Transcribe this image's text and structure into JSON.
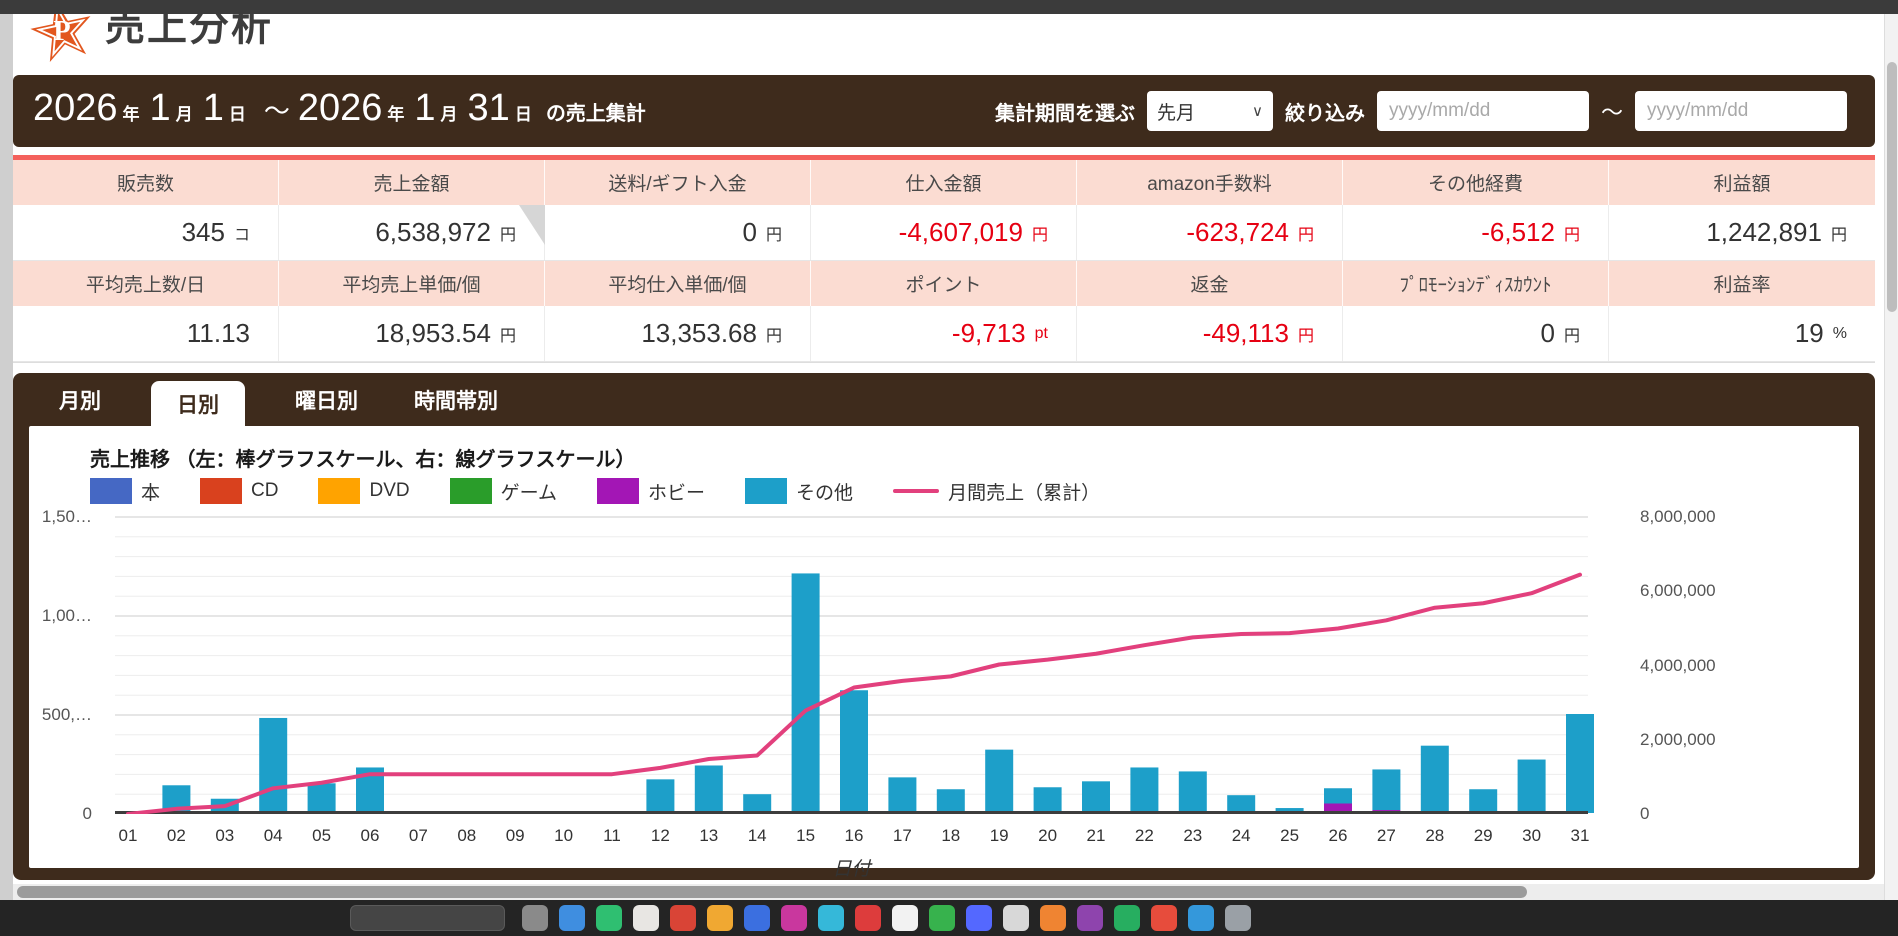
{
  "header": {
    "title": "売上分析",
    "logo_letter": "P"
  },
  "brand": {
    "orange": "#e2571f",
    "brown": "#3e2b1c",
    "pink_header_bg": "#fbdcd2",
    "red_divider": "#f4615c",
    "negative_red": "#e60012"
  },
  "period_bar": {
    "date_parts": [
      {
        "text": "2026",
        "size": "big"
      },
      {
        "text": "年",
        "size": "small"
      },
      {
        "text": "1",
        "size": "big"
      },
      {
        "text": "月",
        "size": "small"
      },
      {
        "text": "1",
        "size": "big"
      },
      {
        "text": "日",
        "size": "small"
      },
      {
        "text": "～",
        "size": "tilde"
      },
      {
        "text": "2026",
        "size": "big"
      },
      {
        "text": "年",
        "size": "small"
      },
      {
        "text": "1",
        "size": "big"
      },
      {
        "text": "月",
        "size": "small"
      },
      {
        "text": "31",
        "size": "big"
      },
      {
        "text": "日",
        "size": "small"
      },
      {
        "text": "の売上集計",
        "size": "suffix"
      }
    ],
    "select_label": "集計期間を選ぶ",
    "select_value": "先月",
    "filter_label": "絞り込み",
    "date_from_placeholder": "yyyy/mm/dd",
    "date_to_placeholder": "yyyy/mm/dd",
    "separator": "～"
  },
  "summary_table": {
    "rows": [
      {
        "type": "header",
        "cells": [
          "販売数",
          "売上金額",
          "送料/ギフト入金",
          "仕入金額",
          "amazon手数料",
          "その他経費",
          "利益額"
        ]
      },
      {
        "type": "value",
        "cells": [
          {
            "num": "345",
            "unit": "コ",
            "neg": false
          },
          {
            "num": "6,538,972",
            "unit": "円",
            "neg": false
          },
          {
            "num": "0",
            "unit": "円",
            "neg": false
          },
          {
            "num": "-4,607,019",
            "unit": "円",
            "neg": true
          },
          {
            "num": "-623,724",
            "unit": "円",
            "neg": true
          },
          {
            "num": "-6,512",
            "unit": "円",
            "neg": true
          },
          {
            "num": "1,242,891",
            "unit": "円",
            "neg": false
          }
        ]
      },
      {
        "type": "header",
        "cells": [
          "平均売上数/日",
          "平均売上単価/個",
          "平均仕入単価/個",
          "ポイント",
          "返金",
          "ﾌﾟﾛﾓｰｼｮﾝﾃﾞｨｽｶｳﾝﾄ",
          "利益率"
        ]
      },
      {
        "type": "value",
        "cells": [
          {
            "num": "11.13",
            "unit": "",
            "neg": false
          },
          {
            "num": "18,953.54",
            "unit": "円",
            "neg": false
          },
          {
            "num": "13,353.68",
            "unit": "円",
            "neg": false
          },
          {
            "num": "-9,713",
            "unit": "pt",
            "neg": true
          },
          {
            "num": "-49,113",
            "unit": "円",
            "neg": true
          },
          {
            "num": "0",
            "unit": "円",
            "neg": false
          },
          {
            "num": "19",
            "unit": "%",
            "neg": false
          }
        ]
      }
    ]
  },
  "tabs": [
    {
      "key": "monthly",
      "label": "月別",
      "active": false
    },
    {
      "key": "daily",
      "label": "日別",
      "active": true
    },
    {
      "key": "weekday",
      "label": "曜日別",
      "active": false
    },
    {
      "key": "timeband",
      "label": "時間帯別",
      "active": false
    }
  ],
  "chart_data": {
    "type": "bar",
    "subtype": "stacked bars (left axis) + cumulative line (right axis)",
    "title": "売上推移 （左：棒グラフスケール、右：線グラフスケール）",
    "xlabel": "日付",
    "categories": [
      "01",
      "02",
      "03",
      "04",
      "05",
      "06",
      "07",
      "08",
      "09",
      "10",
      "11",
      "12",
      "13",
      "14",
      "15",
      "16",
      "17",
      "18",
      "19",
      "20",
      "21",
      "22",
      "23",
      "24",
      "25",
      "26",
      "27",
      "28",
      "29",
      "30",
      "31"
    ],
    "series": [
      {
        "name": "本",
        "color": "#4568c4",
        "values": [
          0,
          0,
          0,
          0,
          0,
          0,
          0,
          0,
          0,
          0,
          0,
          0,
          0,
          0,
          0,
          0,
          0,
          0,
          0,
          0,
          0,
          0,
          0,
          0,
          0,
          0,
          0,
          0,
          0,
          0,
          0
        ]
      },
      {
        "name": "CD",
        "color": "#d9411e",
        "values": [
          0,
          0,
          0,
          0,
          0,
          0,
          0,
          0,
          0,
          0,
          0,
          0,
          0,
          0,
          0,
          0,
          0,
          0,
          0,
          0,
          0,
          0,
          0,
          0,
          0,
          0,
          0,
          0,
          0,
          0,
          0
        ]
      },
      {
        "name": "DVD",
        "color": "#ffa300",
        "values": [
          0,
          0,
          0,
          0,
          0,
          0,
          0,
          0,
          0,
          0,
          0,
          0,
          0,
          0,
          0,
          0,
          0,
          0,
          0,
          0,
          0,
          0,
          0,
          0,
          0,
          0,
          0,
          0,
          0,
          0,
          0
        ]
      },
      {
        "name": "ゲーム",
        "color": "#2a9d2a",
        "values": [
          0,
          0,
          0,
          0,
          0,
          0,
          0,
          0,
          0,
          0,
          0,
          0,
          0,
          0,
          0,
          0,
          0,
          0,
          0,
          0,
          0,
          0,
          0,
          0,
          0,
          0,
          0,
          0,
          0,
          0,
          0
        ]
      },
      {
        "name": "ホビー",
        "color": "#a316b5",
        "values": [
          0,
          0,
          0,
          0,
          0,
          0,
          0,
          0,
          0,
          0,
          0,
          0,
          0,
          0,
          0,
          0,
          0,
          0,
          0,
          0,
          0,
          0,
          0,
          0,
          8000,
          48000,
          15000,
          0,
          0,
          0,
          0
        ]
      },
      {
        "name": "その他",
        "color": "#1d9fc9",
        "values": [
          0,
          140000,
          72000,
          480000,
          150000,
          230000,
          0,
          0,
          0,
          0,
          0,
          170000,
          240000,
          95000,
          1210000,
          620000,
          180000,
          120000,
          320000,
          130000,
          160000,
          230000,
          210000,
          90000,
          17000,
          77000,
          205000,
          340000,
          120000,
          270000,
          500000
        ]
      }
    ],
    "line_series": {
      "name": "月間売上（累計）",
      "color": "#e2407d",
      "note": "cumulative sum of daily bar totals, right axis"
    },
    "left_axis": {
      "max": 1500000,
      "ticks": [
        {
          "label": "1,50…",
          "value": 1500000
        },
        {
          "label": "1,00…",
          "value": 1000000
        },
        {
          "label": "500,…",
          "value": 500000
        },
        {
          "label": "0",
          "value": 0
        }
      ]
    },
    "right_axis": {
      "max": 8000000,
      "ticks": [
        {
          "label": "8,000,000",
          "value": 8000000
        },
        {
          "label": "6,000,000",
          "value": 6000000
        },
        {
          "label": "4,000,000",
          "value": 4000000
        },
        {
          "label": "2,000,000",
          "value": 2000000
        },
        {
          "label": "0",
          "value": 0
        }
      ]
    },
    "grid": true,
    "legend_position": "top-left"
  },
  "dock": {
    "icon_colors": [
      "#8a8a8a",
      "#3f8ee0",
      "#2fbf71",
      "#e8e6e3",
      "#d94436",
      "#f0a832",
      "#3b6fe0",
      "#c9379e",
      "#35b8d9",
      "#dd3c3c",
      "#f2f2f2",
      "#37b24d",
      "#5468ff",
      "#d8d8d8",
      "#ef8432",
      "#8e44ad",
      "#27ae60",
      "#e74c3c",
      "#3498db",
      "#9aa0a6"
    ]
  }
}
